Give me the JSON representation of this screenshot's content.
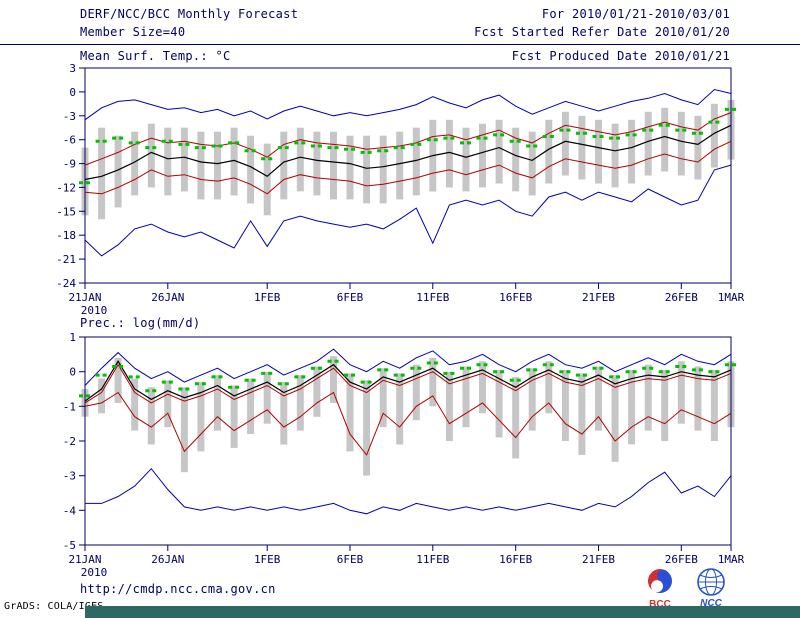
{
  "header": {
    "title": "DERF/NCC/BCC Monthly Forecast",
    "member_size": "Member Size=40",
    "for_range": "For 2010/01/21-2010/03/01",
    "fcst_started": "Fcst Started Refer Date 2010/01/20",
    "fcst_produced": "Fcst Produced Date 2010/01/21"
  },
  "footer": {
    "url": "http://cmdp.ncc.cma.gov.cn",
    "grads_credit": "GrADS: COLA/IGES",
    "bcc_label": "BCC",
    "ncc_label": "NCC"
  },
  "colors": {
    "ink": "#000066",
    "ensemble_bar": "#c6c6c6",
    "envelope_blue": "#0000b4",
    "spread_red": "#b40000",
    "mean_black": "#000000",
    "median_green": "#00c000",
    "bottom_bar": "#2e6864"
  },
  "chart_data": [
    {
      "type": "line",
      "title": "Mean Surf. Temp.: °C",
      "xlabel": "",
      "ylabel": "Mean Surf. Temp.: °C",
      "grid": false,
      "legend": "none",
      "ylim": [
        -24,
        3
      ],
      "yticks": [
        3,
        0,
        -3,
        -6,
        -9,
        -12,
        -15,
        -18,
        -21,
        -24
      ],
      "x_tick_labels": [
        "21JAN",
        "26JAN",
        "1FEB",
        "6FEB",
        "11FEB",
        "16FEB",
        "21FEB",
        "26FEB",
        "1MAR"
      ],
      "x_tick_positions": [
        0,
        5,
        11,
        16,
        21,
        26,
        31,
        36,
        39
      ],
      "x_sub_label": "2010",
      "series": [
        {
          "name": "ensemble-max",
          "color": "#0000b4",
          "width": 1,
          "values": [
            -3.5,
            -2.0,
            -1.2,
            -1.0,
            -1.6,
            -2.2,
            -2.0,
            -2.6,
            -2.2,
            -3.0,
            -2.4,
            -3.4,
            -2.4,
            -1.8,
            -2.4,
            -3.0,
            -2.6,
            -3.0,
            -2.6,
            -2.2,
            -1.6,
            -0.6,
            -1.4,
            -2.0,
            -1.0,
            -0.4,
            -1.8,
            -2.8,
            -2.0,
            -1.2,
            -1.8,
            -2.4,
            -1.8,
            -1.2,
            -0.8,
            -0.2,
            -1.0,
            -1.6,
            0.3,
            -0.2
          ]
        },
        {
          "name": "spread-upper",
          "color": "#b40000",
          "width": 1,
          "values": [
            -9.2,
            -8.4,
            -7.6,
            -6.6,
            -5.8,
            -6.4,
            -6.2,
            -6.6,
            -6.8,
            -6.4,
            -7.2,
            -8.2,
            -6.6,
            -6.0,
            -6.4,
            -6.6,
            -6.8,
            -7.2,
            -7.0,
            -6.8,
            -6.4,
            -5.6,
            -5.4,
            -6.0,
            -5.4,
            -4.8,
            -5.8,
            -6.4,
            -5.2,
            -4.2,
            -4.6,
            -5.0,
            -5.4,
            -5.0,
            -4.4,
            -3.8,
            -4.4,
            -4.8,
            -3.4,
            -2.6
          ]
        },
        {
          "name": "ensemble-mean",
          "color": "#000000",
          "width": 1.2,
          "values": [
            -11.0,
            -10.6,
            -9.8,
            -8.8,
            -7.6,
            -8.4,
            -8.2,
            -8.8,
            -9.0,
            -8.6,
            -9.4,
            -10.6,
            -8.8,
            -8.2,
            -8.6,
            -8.8,
            -9.0,
            -9.6,
            -9.4,
            -9.0,
            -8.6,
            -8.0,
            -7.6,
            -8.2,
            -7.6,
            -7.0,
            -8.0,
            -8.6,
            -7.2,
            -6.2,
            -6.6,
            -7.0,
            -7.4,
            -7.0,
            -6.2,
            -5.6,
            -6.2,
            -6.6,
            -5.2,
            -4.2
          ]
        },
        {
          "name": "spread-lower",
          "color": "#b40000",
          "width": 1,
          "values": [
            -12.6,
            -12.8,
            -12.0,
            -11.0,
            -9.8,
            -10.6,
            -10.4,
            -11.0,
            -11.2,
            -10.8,
            -11.6,
            -12.8,
            -11.0,
            -10.4,
            -10.8,
            -11.0,
            -11.2,
            -11.8,
            -11.6,
            -11.2,
            -10.8,
            -10.2,
            -9.8,
            -10.4,
            -9.8,
            -9.2,
            -10.2,
            -10.8,
            -9.4,
            -8.4,
            -8.8,
            -9.2,
            -9.6,
            -9.2,
            -8.4,
            -7.8,
            -8.4,
            -8.8,
            -7.2,
            -6.2
          ]
        },
        {
          "name": "ensemble-min",
          "color": "#0000b4",
          "width": 1,
          "values": [
            -18.6,
            -20.6,
            -19.2,
            -17.2,
            -16.6,
            -17.6,
            -18.2,
            -17.6,
            -18.6,
            -19.6,
            -16.2,
            -19.4,
            -16.2,
            -15.6,
            -16.2,
            -16.6,
            -17.0,
            -16.6,
            -17.2,
            -16.0,
            -14.6,
            -19.0,
            -14.2,
            -13.6,
            -14.2,
            -13.6,
            -15.0,
            -15.6,
            -13.2,
            -12.6,
            -13.6,
            -12.6,
            -13.2,
            -13.8,
            -12.2,
            -13.2,
            -14.2,
            -13.6,
            -9.8,
            -9.2
          ]
        }
      ],
      "bars": {
        "name": "ensemble-range-bar",
        "color": "#c6c6c6",
        "top": [
          -7.0,
          -4.5,
          -5.5,
          -5.0,
          -4.0,
          -4.5,
          -4.5,
          -5.0,
          -5.0,
          -4.5,
          -5.5,
          -6.5,
          -5.0,
          -4.5,
          -5.0,
          -5.0,
          -5.5,
          -5.5,
          -5.5,
          -5.0,
          -4.5,
          -3.5,
          -3.5,
          -4.5,
          -4.0,
          -3.5,
          -4.5,
          -5.0,
          -3.5,
          -2.5,
          -3.0,
          -3.5,
          -4.0,
          -3.5,
          -2.5,
          -2.0,
          -2.5,
          -3.0,
          -1.5,
          -1.0
        ],
        "bottom": [
          -15.5,
          -16.0,
          -14.5,
          -13.0,
          -12.0,
          -13.0,
          -12.5,
          -13.5,
          -13.5,
          -13.0,
          -14.0,
          -15.5,
          -13.5,
          -12.5,
          -13.0,
          -13.5,
          -13.5,
          -14.0,
          -14.0,
          -13.5,
          -13.0,
          -12.5,
          -12.0,
          -12.5,
          -12.0,
          -11.5,
          -12.5,
          -13.0,
          -11.5,
          -10.5,
          -11.0,
          -11.5,
          -12.0,
          -11.5,
          -10.5,
          -10.0,
          -10.5,
          -11.0,
          -9.5,
          -8.5
        ]
      },
      "dashes": {
        "name": "median-dash",
        "color": "#00c000",
        "values": [
          -11.4,
          -6.2,
          -5.8,
          -6.4,
          -7.0,
          -6.2,
          -6.6,
          -7.0,
          -6.8,
          -6.4,
          -7.4,
          -8.4,
          -7.0,
          -6.4,
          -6.8,
          -7.0,
          -7.2,
          -7.6,
          -7.4,
          -7.0,
          -6.6,
          -6.0,
          -5.8,
          -6.4,
          -5.8,
          -5.4,
          -6.2,
          -6.8,
          -5.6,
          -4.8,
          -5.2,
          -5.6,
          -5.8,
          -5.4,
          -4.8,
          -4.2,
          -4.8,
          -5.2,
          -3.8,
          -2.2
        ]
      }
    },
    {
      "type": "line",
      "title": "Prec.: log(mm/d)",
      "xlabel": "",
      "ylabel": "Prec.: log(mm/d)",
      "grid": false,
      "legend": "none",
      "ylim": [
        -5,
        1
      ],
      "yticks": [
        1,
        0,
        -1,
        -2,
        -3,
        -4,
        -5
      ],
      "x_tick_labels": [
        "21JAN",
        "26JAN",
        "1FEB",
        "6FEB",
        "11FEB",
        "16FEB",
        "21FEB",
        "26FEB",
        "1MAR"
      ],
      "x_tick_positions": [
        0,
        5,
        11,
        16,
        21,
        26,
        31,
        36,
        39
      ],
      "x_sub_label": "2010",
      "series": [
        {
          "name": "ensemble-max",
          "color": "#0000b4",
          "width": 1,
          "values": [
            -0.4,
            0.1,
            0.55,
            0.1,
            -0.2,
            0.0,
            -0.3,
            -0.1,
            0.1,
            -0.2,
            0.0,
            0.2,
            -0.1,
            0.1,
            0.3,
            0.65,
            0.2,
            0.0,
            0.3,
            0.1,
            0.4,
            0.6,
            0.2,
            0.3,
            0.5,
            0.2,
            0.0,
            0.3,
            0.5,
            0.2,
            0.1,
            0.3,
            0.0,
            0.2,
            0.4,
            0.2,
            0.5,
            0.3,
            0.2,
            0.5
          ]
        },
        {
          "name": "spread-upper",
          "color": "#b40000",
          "width": 1,
          "values": [
            -0.9,
            -0.6,
            0.2,
            -0.6,
            -0.9,
            -0.65,
            -0.85,
            -0.7,
            -0.5,
            -0.8,
            -0.6,
            -0.4,
            -0.7,
            -0.5,
            -0.2,
            0.1,
            -0.4,
            -0.6,
            -0.25,
            -0.4,
            -0.2,
            0.0,
            -0.35,
            -0.2,
            -0.05,
            -0.3,
            -0.55,
            -0.25,
            -0.05,
            -0.3,
            -0.4,
            -0.2,
            -0.45,
            -0.3,
            -0.2,
            -0.25,
            -0.1,
            -0.2,
            -0.25,
            -0.05
          ]
        },
        {
          "name": "ensemble-mean",
          "color": "#000000",
          "width": 1.2,
          "values": [
            -0.85,
            -0.5,
            0.3,
            -0.5,
            -0.8,
            -0.55,
            -0.75,
            -0.6,
            -0.4,
            -0.7,
            -0.5,
            -0.3,
            -0.6,
            -0.4,
            -0.1,
            0.2,
            -0.3,
            -0.5,
            -0.15,
            -0.3,
            -0.1,
            0.1,
            -0.25,
            -0.1,
            0.05,
            -0.2,
            -0.45,
            -0.15,
            0.05,
            -0.2,
            -0.3,
            -0.1,
            -0.35,
            -0.2,
            -0.1,
            -0.15,
            0.0,
            -0.1,
            -0.15,
            0.05
          ]
        },
        {
          "name": "spread-lower",
          "color": "#b40000",
          "width": 1,
          "values": [
            -1.0,
            -0.9,
            -0.6,
            -1.3,
            -1.6,
            -1.2,
            -2.3,
            -1.8,
            -1.3,
            -1.7,
            -1.4,
            -1.1,
            -1.6,
            -1.3,
            -0.9,
            -0.6,
            -1.8,
            -2.4,
            -1.2,
            -1.6,
            -1.0,
            -0.7,
            -1.5,
            -1.2,
            -0.9,
            -1.4,
            -1.9,
            -1.3,
            -0.9,
            -1.5,
            -1.8,
            -1.3,
            -2.0,
            -1.6,
            -1.3,
            -1.5,
            -1.1,
            -1.3,
            -1.5,
            -1.2
          ]
        },
        {
          "name": "ensemble-min",
          "color": "#0000b4",
          "width": 1,
          "values": [
            -3.8,
            -3.8,
            -3.6,
            -3.3,
            -2.8,
            -3.4,
            -3.9,
            -4.0,
            -3.9,
            -4.0,
            -3.9,
            -4.0,
            -3.9,
            -4.0,
            -3.9,
            -3.8,
            -4.0,
            -4.1,
            -3.9,
            -4.0,
            -3.8,
            -3.9,
            -4.0,
            -3.9,
            -4.0,
            -3.9,
            -4.0,
            -3.9,
            -3.8,
            -3.9,
            -4.0,
            -3.8,
            -3.9,
            -3.6,
            -3.2,
            -2.9,
            -3.5,
            -3.3,
            -3.6,
            -3.0
          ]
        }
      ],
      "bars": {
        "name": "ensemble-range-bar",
        "color": "#c6c6c6",
        "top": [
          -0.5,
          -0.2,
          0.4,
          -0.2,
          -0.45,
          -0.25,
          -0.45,
          -0.3,
          -0.1,
          -0.4,
          -0.2,
          0.0,
          -0.3,
          -0.1,
          0.15,
          0.45,
          -0.05,
          -0.25,
          0.1,
          -0.05,
          0.2,
          0.4,
          0.0,
          0.15,
          0.3,
          0.05,
          -0.15,
          0.1,
          0.3,
          0.05,
          -0.05,
          0.15,
          -0.1,
          0.05,
          0.2,
          0.05,
          0.3,
          0.15,
          0.05,
          0.3
        ],
        "bottom": [
          -1.3,
          -1.2,
          -0.9,
          -1.7,
          -2.1,
          -1.6,
          -2.9,
          -2.3,
          -1.7,
          -2.2,
          -1.8,
          -1.5,
          -2.1,
          -1.7,
          -1.3,
          -0.9,
          -2.3,
          -3.0,
          -1.6,
          -2.1,
          -1.4,
          -1.0,
          -2.0,
          -1.6,
          -1.2,
          -1.9,
          -2.5,
          -1.7,
          -1.2,
          -2.0,
          -2.4,
          -1.7,
          -2.6,
          -2.1,
          -1.7,
          -2.0,
          -1.5,
          -1.7,
          -2.0,
          -1.6
        ]
      },
      "dashes": {
        "name": "median-dash",
        "color": "#00c000",
        "values": [
          -0.7,
          -0.1,
          0.15,
          -0.15,
          -0.55,
          -0.3,
          -0.5,
          -0.35,
          -0.15,
          -0.45,
          -0.25,
          -0.05,
          -0.35,
          -0.15,
          0.1,
          0.3,
          -0.1,
          -0.3,
          0.05,
          -0.1,
          0.1,
          0.25,
          -0.05,
          0.1,
          0.2,
          0.0,
          -0.25,
          0.05,
          0.2,
          0.0,
          -0.1,
          0.1,
          -0.15,
          0.0,
          0.1,
          0.0,
          0.15,
          0.05,
          0.0,
          0.2
        ]
      }
    }
  ]
}
